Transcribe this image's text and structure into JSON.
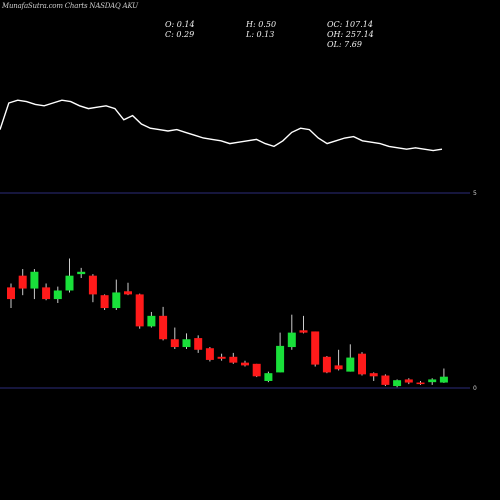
{
  "header": {
    "watermark": "MunafaSutra.com Charts NASDAQ AKU",
    "o": "O: 0.14",
    "c": "C: 0.29",
    "h": "H: 0.50",
    "l": "L: 0.13",
    "oc": "OC: 107.14",
    "oh": "OH: 257.14",
    "ol": "OL: 7.69"
  },
  "colors": {
    "background": "#000000",
    "up": "#19e03a",
    "down": "#ff1a1a",
    "wick": "#cccccc",
    "line": "#ffffff",
    "axis": "#2b2b7a"
  },
  "chart_data": [
    {
      "type": "line",
      "panel": "indicator",
      "values": [
        64,
        45,
        43,
        44,
        46,
        47,
        45,
        43,
        44,
        47,
        49,
        48,
        47,
        49,
        57,
        54,
        60,
        63,
        64,
        65,
        64,
        66,
        68,
        70,
        71,
        72,
        74,
        73,
        72,
        71,
        74,
        76,
        72,
        66,
        63,
        64,
        70,
        74,
        72,
        70,
        69,
        72,
        73,
        74,
        76,
        77,
        78,
        77,
        78,
        79,
        78
      ]
    },
    {
      "type": "candlestick",
      "panel": "price",
      "axis_labels": [
        "5",
        "0"
      ],
      "candles": [
        {
          "open": 2.58,
          "close": 2.28,
          "high": 2.68,
          "low": 2.05
        },
        {
          "open": 2.88,
          "close": 2.55,
          "high": 3.05,
          "low": 2.38
        },
        {
          "open": 2.55,
          "close": 2.98,
          "high": 3.05,
          "low": 2.28
        },
        {
          "open": 2.58,
          "close": 2.28,
          "high": 2.68,
          "low": 2.25
        },
        {
          "open": 2.28,
          "close": 2.5,
          "high": 2.6,
          "low": 2.18
        },
        {
          "open": 2.5,
          "close": 2.88,
          "high": 3.32,
          "low": 2.45
        },
        {
          "open": 2.92,
          "close": 2.98,
          "high": 3.08,
          "low": 2.82
        },
        {
          "open": 2.88,
          "close": 2.4,
          "high": 2.92,
          "low": 2.2
        },
        {
          "open": 2.38,
          "close": 2.05,
          "high": 2.4,
          "low": 2.0
        },
        {
          "open": 2.05,
          "close": 2.45,
          "high": 2.78,
          "low": 2.0
        },
        {
          "open": 2.48,
          "close": 2.4,
          "high": 2.7,
          "low": 2.38
        },
        {
          "open": 2.4,
          "close": 1.58,
          "high": 2.42,
          "low": 1.52
        },
        {
          "open": 1.58,
          "close": 1.85,
          "high": 1.95,
          "low": 1.55
        },
        {
          "open": 1.85,
          "close": 1.25,
          "high": 2.08,
          "low": 1.22
        },
        {
          "open": 1.25,
          "close": 1.05,
          "high": 1.55,
          "low": 1.0
        },
        {
          "open": 1.05,
          "close": 1.25,
          "high": 1.4,
          "low": 1.0
        },
        {
          "open": 1.28,
          "close": 0.98,
          "high": 1.35,
          "low": 0.9
        },
        {
          "open": 1.02,
          "close": 0.72,
          "high": 1.05,
          "low": 0.68
        },
        {
          "open": 0.8,
          "close": 0.75,
          "high": 0.88,
          "low": 0.7
        },
        {
          "open": 0.8,
          "close": 0.65,
          "high": 0.9,
          "low": 0.62
        },
        {
          "open": 0.65,
          "close": 0.58,
          "high": 0.7,
          "low": 0.55
        },
        {
          "open": 0.62,
          "close": 0.3,
          "high": 0.62,
          "low": 0.28
        },
        {
          "open": 0.18,
          "close": 0.38,
          "high": 0.42,
          "low": 0.15
        },
        {
          "open": 0.4,
          "close": 1.08,
          "high": 1.42,
          "low": 0.4
        },
        {
          "open": 1.05,
          "close": 1.42,
          "high": 1.88,
          "low": 0.98
        },
        {
          "open": 1.48,
          "close": 1.42,
          "high": 1.85,
          "low": 1.4
        },
        {
          "open": 1.45,
          "close": 0.6,
          "high": 1.45,
          "low": 0.55
        },
        {
          "open": 0.8,
          "close": 0.4,
          "high": 0.82,
          "low": 0.38
        },
        {
          "open": 0.58,
          "close": 0.48,
          "high": 0.98,
          "low": 0.45
        },
        {
          "open": 0.42,
          "close": 0.78,
          "high": 1.12,
          "low": 0.42
        },
        {
          "open": 0.88,
          "close": 0.35,
          "high": 0.92,
          "low": 0.32
        },
        {
          "open": 0.38,
          "close": 0.3,
          "high": 0.4,
          "low": 0.18
        },
        {
          "open": 0.32,
          "close": 0.08,
          "high": 0.35,
          "low": 0.05
        },
        {
          "open": 0.05,
          "close": 0.2,
          "high": 0.22,
          "low": 0.02
        },
        {
          "open": 0.22,
          "close": 0.14,
          "high": 0.25,
          "low": 0.1
        },
        {
          "open": 0.14,
          "close": 0.1,
          "high": 0.18,
          "low": 0.08
        },
        {
          "open": 0.15,
          "close": 0.22,
          "high": 0.25,
          "low": 0.08
        },
        {
          "open": 0.14,
          "close": 0.29,
          "high": 0.5,
          "low": 0.13
        }
      ]
    }
  ]
}
